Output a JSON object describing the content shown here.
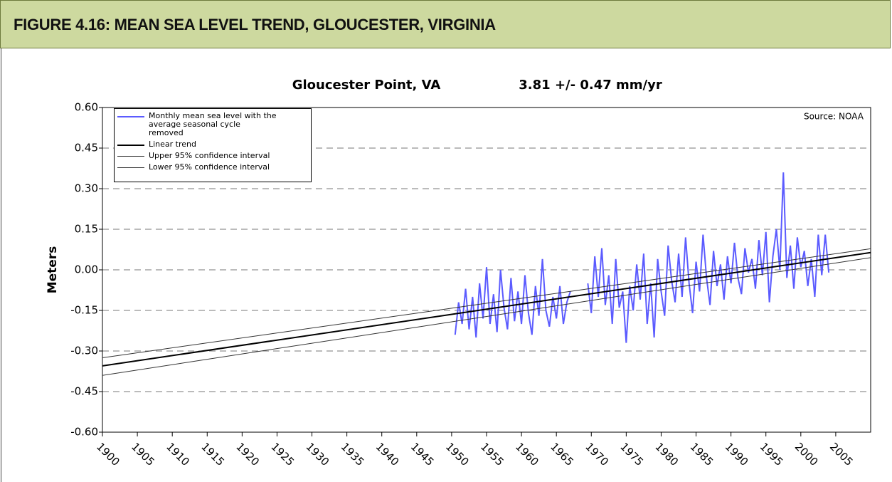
{
  "header": "FIGURE 4.16: MEAN SEA LEVEL TREND, GLOUCESTER, VIRGINIA",
  "chart_data": {
    "type": "line",
    "title": "Gloucester Point, VA",
    "subtitle": "3.81 +/- 0.47 mm/yr",
    "annotation": "Source: NOAA",
    "ylabel": "Meters",
    "xlim": [
      1900,
      2010
    ],
    "ylim": [
      -0.6,
      0.6
    ],
    "xticks": [
      1900,
      1905,
      1910,
      1915,
      1920,
      1925,
      1930,
      1935,
      1940,
      1945,
      1950,
      1955,
      1960,
      1965,
      1970,
      1975,
      1980,
      1985,
      1990,
      1995,
      2000,
      2005
    ],
    "yticks": [
      {
        "value": 0.6,
        "label": "0.60"
      },
      {
        "value": 0.45,
        "label": "0.45"
      },
      {
        "value": 0.3,
        "label": "0.30"
      },
      {
        "value": 0.15,
        "label": "0.15"
      },
      {
        "value": 0,
        "label": "0.00"
      },
      {
        "value": -0.15,
        "label": "-0.15"
      },
      {
        "value": -0.3,
        "label": "-0.30"
      },
      {
        "value": -0.45,
        "label": "-0.45"
      },
      {
        "value": -0.6,
        "label": "-0.60"
      }
    ],
    "grid": true,
    "legend": "upper left",
    "series": [
      {
        "name": "Monthly mean sea level with the average seasonal cycle removed",
        "color": "#5b5bff",
        "width": 2,
        "x": [
          1950.5,
          1951,
          1951.5,
          1952,
          1952.5,
          1953,
          1953.5,
          1954,
          1954.5,
          1955,
          1955.5,
          1956,
          1956.5,
          1957,
          1957.5,
          1958,
          1958.5,
          1959,
          1959.5,
          1960,
          1960.5,
          1961,
          1961.5,
          1962,
          1962.5,
          1963,
          1963.5,
          1964,
          1964.5,
          1965,
          1965.5,
          1966,
          1966.5,
          1967,
          1967.5,
          1968,
          1968.5,
          1969,
          1969.5,
          1970,
          1970.5,
          1971,
          1971.5,
          1972,
          1972.5,
          1973,
          1973.5,
          1974,
          1974.5,
          1975,
          1975.5,
          1976,
          1976.5,
          1977,
          1977.5,
          1978,
          1978.5,
          1979,
          1979.5,
          1980,
          1980.5,
          1981,
          1981.5,
          1982,
          1982.5,
          1983,
          1983.5,
          1984,
          1984.5,
          1985,
          1985.5,
          1986,
          1986.5,
          1987,
          1987.5,
          1988,
          1988.5,
          1989,
          1989.5,
          1990,
          1990.5,
          1991,
          1991.5,
          1992,
          1992.5,
          1993,
          1993.5,
          1994,
          1994.5,
          1995,
          1995.5,
          1996,
          1996.5,
          1997,
          1997.5,
          1998,
          1998.5,
          1999,
          1999.5,
          2000,
          2000.5,
          2001,
          2001.5,
          2002,
          2002.5,
          2003,
          2003.5,
          2004
        ],
        "values": [
          -0.24,
          -0.12,
          -0.2,
          -0.07,
          -0.22,
          -0.1,
          -0.25,
          -0.05,
          -0.18,
          0.01,
          -0.2,
          -0.09,
          -0.23,
          0.0,
          -0.14,
          -0.22,
          -0.03,
          -0.19,
          -0.08,
          -0.2,
          -0.02,
          -0.16,
          -0.24,
          -0.06,
          -0.17,
          0.04,
          -0.15,
          -0.21,
          -0.1,
          -0.18,
          -0.06,
          -0.2,
          -0.12,
          -0.08,
          null,
          null,
          null,
          null,
          -0.05,
          -0.16,
          0.05,
          -0.1,
          0.08,
          -0.13,
          -0.02,
          -0.2,
          0.04,
          -0.14,
          -0.08,
          -0.27,
          -0.06,
          -0.15,
          0.02,
          -0.11,
          0.06,
          -0.2,
          -0.05,
          -0.25,
          0.04,
          -0.08,
          -0.17,
          0.09,
          -0.04,
          -0.12,
          0.06,
          -0.1,
          0.12,
          -0.05,
          -0.16,
          0.03,
          -0.08,
          0.13,
          -0.03,
          -0.13,
          0.07,
          -0.06,
          0.02,
          -0.11,
          0.05,
          -0.05,
          0.1,
          -0.03,
          -0.09,
          0.08,
          -0.01,
          0.04,
          -0.07,
          0.11,
          -0.02,
          0.14,
          -0.12,
          0.05,
          0.15,
          0.0,
          0.36,
          -0.03,
          0.09,
          -0.07,
          0.12,
          0.01,
          0.07,
          -0.06,
          0.04,
          -0.1,
          0.13,
          -0.02,
          0.13,
          -0.01
        ]
      },
      {
        "name": "Linear trend",
        "color": "#000000",
        "width": 2,
        "x": [
          1900,
          2010
        ],
        "values": [
          -0.355,
          0.064
        ]
      },
      {
        "name": "Upper 95% confidence interval",
        "color": "#333333",
        "width": 1,
        "x": [
          1900,
          2010
        ],
        "values": [
          -0.325,
          0.078
        ]
      },
      {
        "name": "Lower 95% confidence interval",
        "color": "#333333",
        "width": 1,
        "x": [
          1900,
          2010
        ],
        "values": [
          -0.39,
          0.045
        ]
      }
    ]
  }
}
